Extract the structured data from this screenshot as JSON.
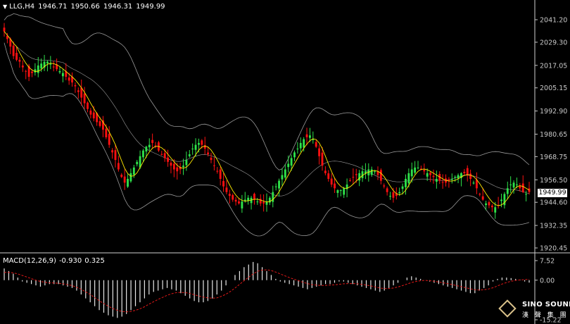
{
  "header": {
    "symbol": "LLG,H4",
    "open": "1946.71",
    "high": "1950.66",
    "low": "1946.31",
    "close": "1949.99"
  },
  "macd_header": {
    "label": "MACD(12,26,9)",
    "macd_value": "-0.930",
    "signal_value": "0.325"
  },
  "last_price_label": "1949.99",
  "logo": {
    "en": "SINO SOUND",
    "cn": "漢 聲 集 團"
  },
  "colors": {
    "bull": "#2ee34a",
    "bear": "#ff1010",
    "ma": "#ffea00",
    "bands": "#9a9a9a",
    "axis": "#c8c8c8",
    "signal": "#e01818",
    "hist": "#e8e8e8"
  },
  "chart_data": [
    {
      "type": "candlestick",
      "title": "LLG,H4",
      "ylim": [
        1920.45,
        2041.2
      ],
      "y_ticks": [
        2041.2,
        2029.3,
        2017.05,
        2005.15,
        1992.9,
        1980.65,
        1968.75,
        1956.5,
        1944.6,
        1932.35,
        1920.45
      ],
      "overlays": [
        "Bollinger Bands",
        "Moving Average"
      ],
      "last_price": 1949.99,
      "closes": [
        2035,
        2031,
        2027,
        2022,
        2020,
        2019,
        2016,
        2014,
        2011,
        2013,
        2015,
        2017,
        2018,
        2019,
        2019,
        2018,
        2016,
        2015,
        2014,
        2013,
        2011,
        2009,
        2008,
        2006,
        2003,
        2000,
        1997,
        1994,
        1991,
        1989,
        1987,
        1985,
        1983,
        1979,
        1975,
        1971,
        1967,
        1962,
        1958,
        1955,
        1957,
        1960,
        1963,
        1966,
        1969,
        1972,
        1974,
        1975,
        1976,
        1974,
        1972,
        1970,
        1968,
        1966,
        1964,
        1962,
        1961,
        1962,
        1964,
        1967,
        1970,
        1973,
        1975,
        1976,
        1975,
        1973,
        1970,
        1967,
        1964,
        1961,
        1957,
        1953,
        1950,
        1948,
        1946,
        1945,
        1944,
        1945,
        1946,
        1947,
        1947,
        1946,
        1945,
        1944,
        1944,
        1945,
        1947,
        1950,
        1953,
        1956,
        1959,
        1962,
        1965,
        1968,
        1971,
        1973,
        1976,
        1978,
        1979,
        1980,
        1978,
        1974,
        1969,
        1964,
        1960,
        1957,
        1954,
        1952,
        1951,
        1951,
        1952,
        1954,
        1956,
        1958,
        1959,
        1960,
        1961,
        1961,
        1962,
        1962,
        1961,
        1959,
        1956,
        1953,
        1950,
        1948,
        1947,
        1948,
        1950,
        1953,
        1957,
        1960,
        1962,
        1963,
        1963,
        1962,
        1961,
        1960,
        1959,
        1958,
        1957,
        1956,
        1955,
        1955,
        1956,
        1957,
        1958,
        1959,
        1960,
        1960,
        1959,
        1957,
        1955,
        1952,
        1949,
        1946,
        1944,
        1943,
        1942,
        1942,
        1943,
        1946,
        1949,
        1952,
        1954,
        1955,
        1954,
        1952,
        1950,
        1949,
        1950
      ]
    },
    {
      "type": "macd",
      "title": "MACD(12,26,9)",
      "ylim": [
        -15.22,
        7.52
      ],
      "y_ticks": [
        7.52,
        0.0,
        -15.22
      ],
      "macd_value": -0.93,
      "signal_value": 0.325,
      "macd": [
        4.5,
        3.5,
        2.5,
        1.0,
        -0.5,
        -1.0,
        -1.5,
        -2.0,
        -2.5,
        -2.0,
        -1.5,
        -1.5,
        -1.5,
        -2.0,
        -2.5,
        -3.0,
        -4.0,
        -5.5,
        -7.0,
        -8.5,
        -10.0,
        -11.5,
        -12.5,
        -13.5,
        -14.0,
        -14.5,
        -14.0,
        -13.0,
        -11.5,
        -10.0,
        -8.5,
        -7.0,
        -5.5,
        -4.5,
        -4.0,
        -3.5,
        -3.0,
        -3.5,
        -4.0,
        -5.0,
        -6.0,
        -7.0,
        -8.0,
        -8.5,
        -8.5,
        -8.0,
        -7.0,
        -5.5,
        -4.0,
        -2.0,
        0.0,
        2.0,
        3.5,
        5.0,
        6.0,
        7.0,
        6.5,
        5.0,
        3.5,
        2.0,
        0.5,
        -0.5,
        -1.0,
        -1.5,
        -2.0,
        -2.5,
        -3.0,
        -3.5,
        -3.0,
        -2.5,
        -2.0,
        -1.5,
        -1.5,
        -1.0,
        -0.5,
        -0.5,
        -1.0,
        -1.5,
        -2.0,
        -2.5,
        -3.0,
        -3.5,
        -4.0,
        -4.5,
        -4.0,
        -3.0,
        -2.0,
        -1.0,
        0.0,
        1.0,
        1.5,
        1.0,
        0.5,
        0.0,
        -0.5,
        -1.0,
        -1.5,
        -2.0,
        -2.5,
        -3.0,
        -3.5,
        -4.0,
        -4.5,
        -5.0,
        -5.0,
        -4.0,
        -3.0,
        -2.0,
        -0.5,
        0.5,
        1.0,
        1.0,
        0.8,
        0.5,
        0.2,
        -0.5,
        -0.93
      ],
      "signal": [
        3.0,
        3.0,
        2.8,
        2.4,
        1.8,
        1.2,
        0.6,
        0.0,
        -0.5,
        -0.8,
        -1.0,
        -1.1,
        -1.2,
        -1.4,
        -1.7,
        -2.1,
        -2.7,
        -3.5,
        -4.5,
        -5.5,
        -6.7,
        -7.9,
        -9.0,
        -10.0,
        -10.9,
        -11.6,
        -12.0,
        -12.2,
        -12.0,
        -11.6,
        -11.0,
        -10.2,
        -9.2,
        -8.3,
        -7.4,
        -6.6,
        -5.8,
        -5.2,
        -4.8,
        -4.7,
        -4.8,
        -5.1,
        -5.6,
        -6.1,
        -6.5,
        -6.8,
        -6.9,
        -6.8,
        -6.2,
        -5.4,
        -4.3,
        -3.0,
        -1.6,
        -0.2,
        1.1,
        2.4,
        3.4,
        3.9,
        4.0,
        3.7,
        3.1,
        2.4,
        1.7,
        1.0,
        0.4,
        -0.2,
        -0.8,
        -1.3,
        -1.7,
        -1.9,
        -2.0,
        -2.0,
        -1.9,
        -1.8,
        -1.6,
        -1.4,
        -1.3,
        -1.3,
        -1.4,
        -1.6,
        -1.9,
        -2.2,
        -2.6,
        -3.0,
        -3.2,
        -3.2,
        -3.0,
        -2.6,
        -2.1,
        -1.5,
        -0.9,
        -0.5,
        -0.2,
        -0.1,
        -0.2,
        -0.4,
        -0.7,
        -1.0,
        -1.3,
        -1.7,
        -2.1,
        -2.5,
        -2.9,
        -3.3,
        -3.7,
        -3.8,
        -3.7,
        -3.4,
        -2.9,
        -2.2,
        -1.5,
        -0.9,
        -0.4,
        -0.1,
        0.1,
        0.2,
        0.325
      ]
    }
  ]
}
